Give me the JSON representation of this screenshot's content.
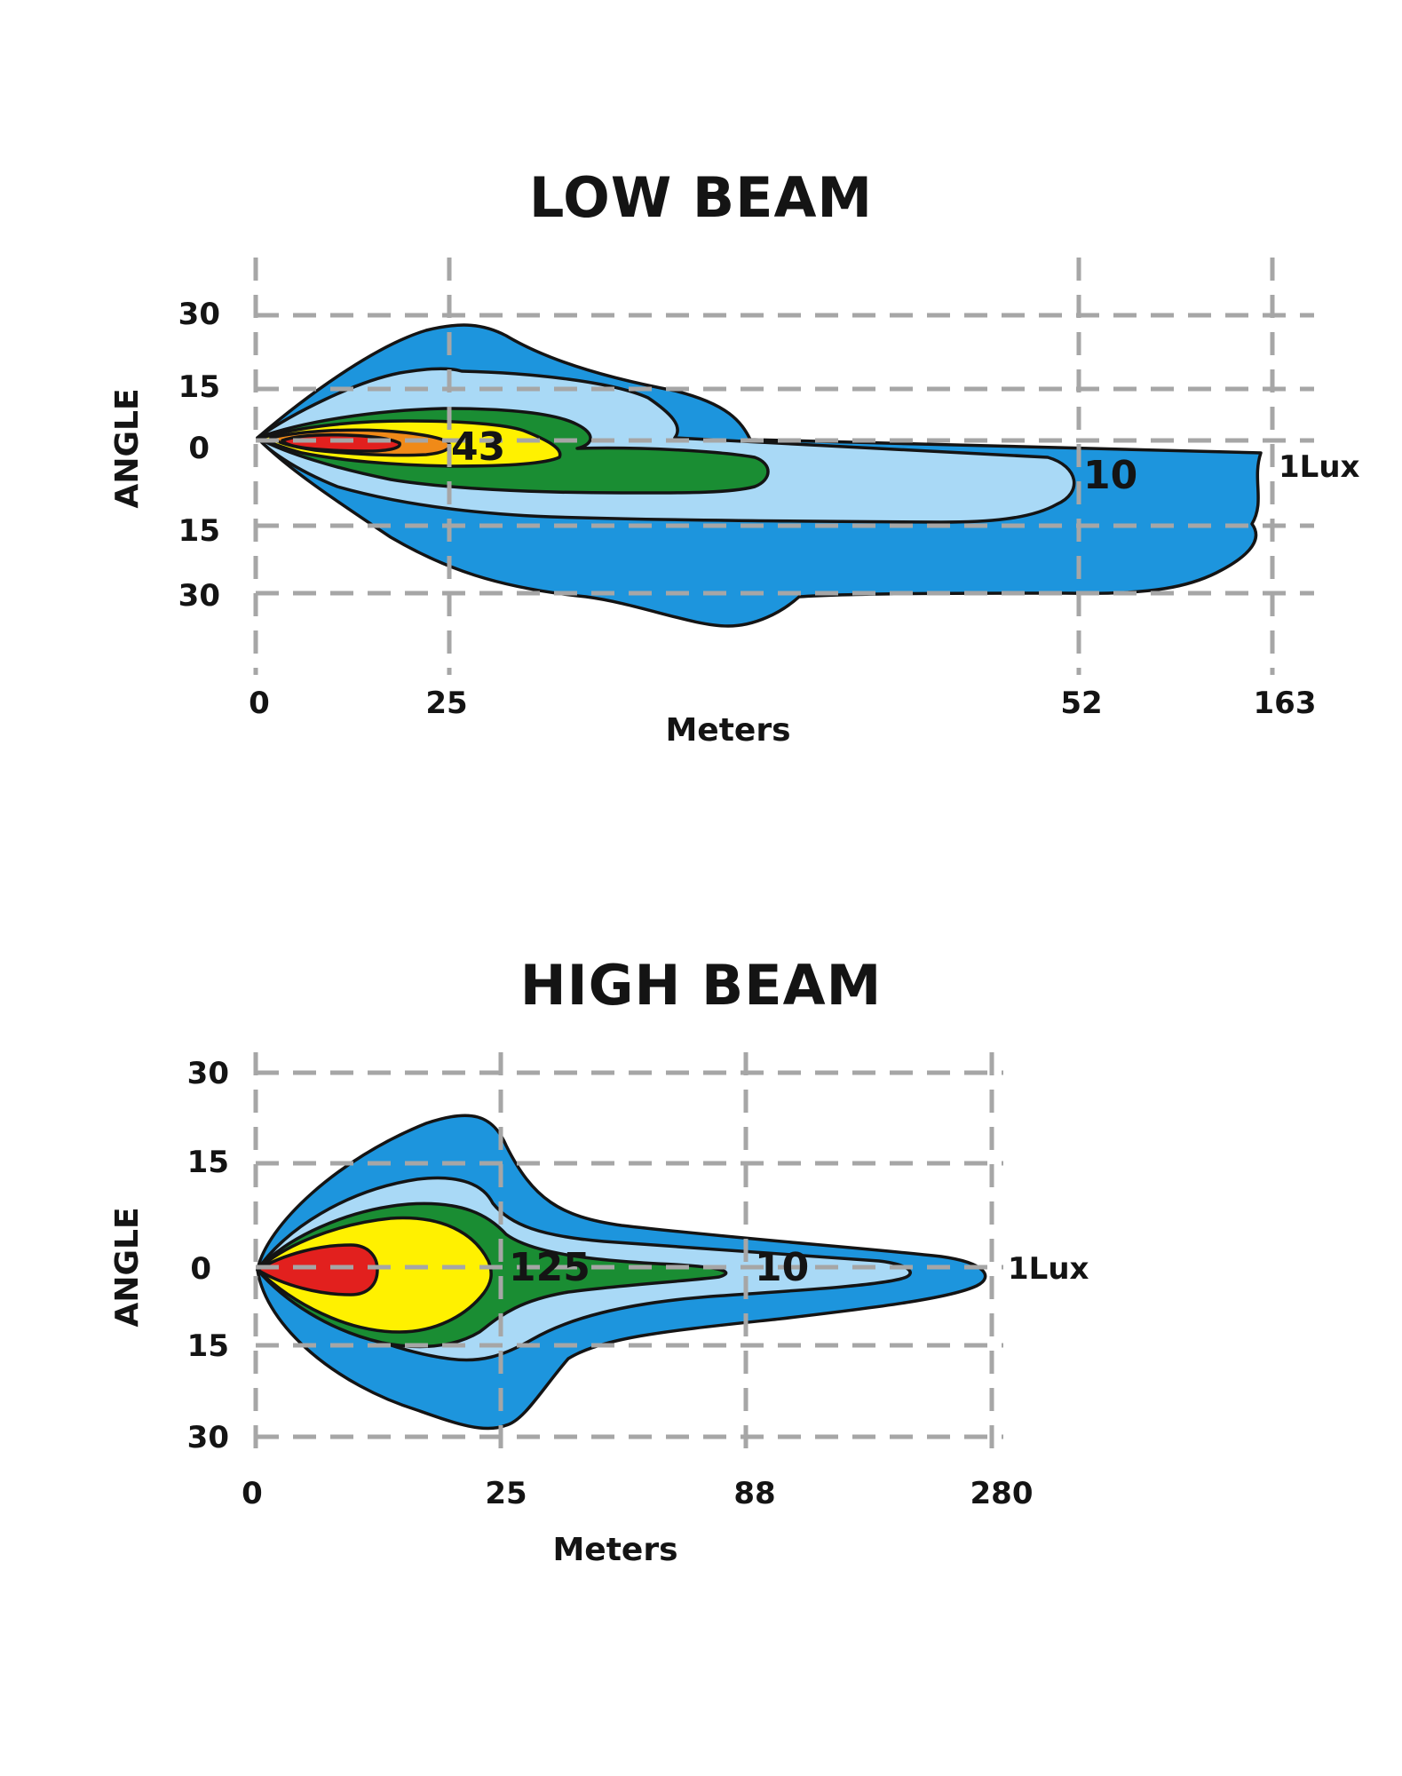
{
  "colors": {
    "lux_1": "#1d95dd",
    "lux_2": "#a9d9f6",
    "lux_3": "#1a8d33",
    "lux_4": "#fff100",
    "lux_5": "#f08a18",
    "lux_6": "#e2201e",
    "grid": "#a6a6a6",
    "outline": "#141414"
  },
  "low_beam": {
    "title": "LOW BEAM",
    "y_label": "ANGLE",
    "x_label": "Meters",
    "y_ticks": [
      "30",
      "15",
      "0",
      "15",
      "30"
    ],
    "x_ticks": [
      "0",
      "25",
      "52",
      "163"
    ],
    "iso_labels": [
      "43",
      "10",
      "1Lux"
    ]
  },
  "high_beam": {
    "title": "HIGH BEAM",
    "y_label": "ANGLE",
    "x_label": "Meters",
    "y_ticks": [
      "30",
      "15",
      "0",
      "15",
      "30"
    ],
    "x_ticks": [
      "0",
      "25",
      "88",
      "280"
    ],
    "iso_labels": [
      "125",
      "10",
      "1Lux"
    ]
  }
}
